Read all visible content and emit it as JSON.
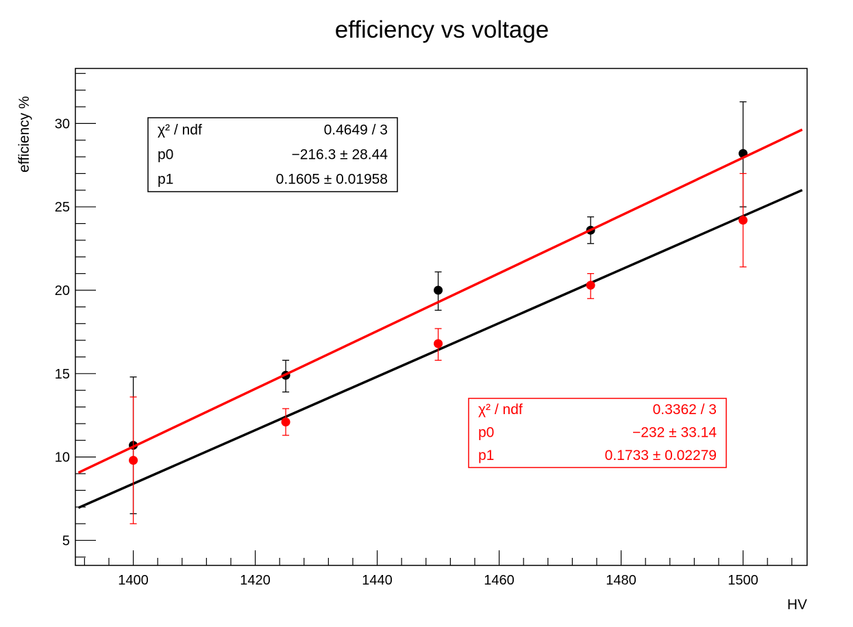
{
  "chart_data": {
    "type": "scatter",
    "title": "efficiency vs voltage",
    "xlabel": "HV",
    "ylabel": "efficiency %",
    "xlim": [
      1390.5,
      1510.5
    ],
    "ylim": [
      3.5,
      33.3
    ],
    "xticks": [
      1400,
      1420,
      1440,
      1460,
      1480,
      1500
    ],
    "yticks": [
      5,
      10,
      15,
      20,
      25,
      30
    ],
    "grid": false,
    "series": [
      {
        "color": "#000000",
        "x": [
          1400,
          1425,
          1450,
          1475,
          1500
        ],
        "y": [
          10.7,
          14.9,
          20.0,
          23.6,
          28.2
        ],
        "y_low": [
          6.6,
          13.9,
          18.8,
          22.8,
          25.0
        ],
        "y_high": [
          14.8,
          15.8,
          21.1,
          24.4,
          31.3
        ],
        "fit": {
          "p0": -216.3,
          "p1": 0.1605
        },
        "stats": {
          "rows": [
            {
              "label": "χ² / ndf",
              "value": "0.4649 / 3"
            },
            {
              "label": "p0",
              "value": "−216.3 ± 28.44"
            },
            {
              "label": "p1",
              "value": "0.1605 ± 0.01958"
            }
          ]
        }
      },
      {
        "color": "#ff0000",
        "x": [
          1400,
          1425,
          1450,
          1475,
          1500
        ],
        "y": [
          9.8,
          12.1,
          16.8,
          20.3,
          24.2
        ],
        "y_low": [
          6.0,
          11.3,
          15.8,
          19.5,
          21.4
        ],
        "y_high": [
          13.6,
          12.9,
          17.7,
          21.0,
          27.0
        ],
        "fit": {
          "p0": -232,
          "p1": 0.1733
        },
        "stats": {
          "rows": [
            {
              "label": "χ² / ndf",
              "value": "0.3362 / 3"
            },
            {
              "label": "p0",
              "value": "−232 ± 33.14"
            },
            {
              "label": "p1",
              "value": "0.1733 ± 0.02279"
            }
          ]
        }
      }
    ]
  }
}
